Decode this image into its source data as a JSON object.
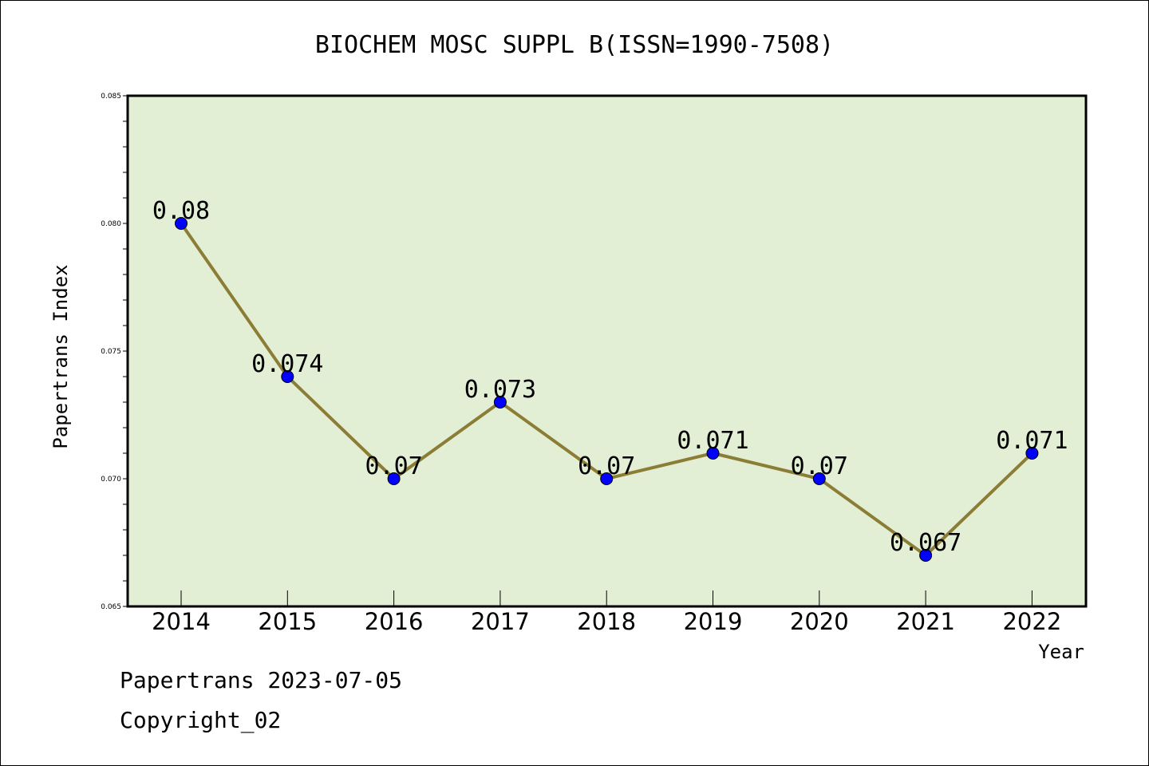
{
  "chart_data": {
    "type": "line",
    "title": "BIOCHEM MOSC SUPPL B(ISSN=1990-7508)",
    "xlabel": "Year",
    "ylabel": "Papertrans Index",
    "categories": [
      "2014",
      "2015",
      "2016",
      "2017",
      "2018",
      "2019",
      "2020",
      "2021",
      "2022"
    ],
    "values": [
      0.08,
      0.074,
      0.07,
      0.073,
      0.07,
      0.071,
      0.07,
      0.067,
      0.071
    ],
    "data_labels": [
      "0.08",
      "0.074",
      "0.07",
      "0.073",
      "0.07",
      "0.071",
      "0.07",
      "0.067",
      "0.071"
    ],
    "ylim": [
      0.065,
      0.085
    ],
    "yticks": [
      "0.065",
      "0.070",
      "0.075",
      "0.080",
      "0.085"
    ],
    "grid": false,
    "colors": {
      "plot_background": "#e2efd5",
      "line": "#8b7d35",
      "marker": "#0000ff"
    }
  },
  "footer": {
    "line1": "Papertrans 2023-07-05",
    "line2": "Copyright_02"
  }
}
